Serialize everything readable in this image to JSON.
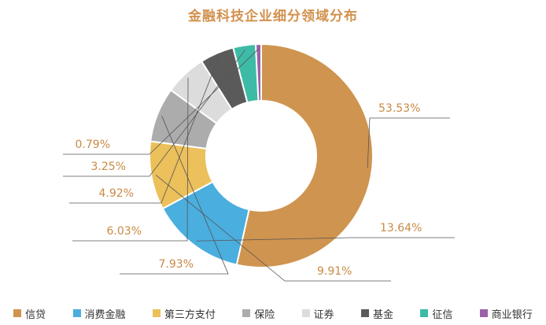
{
  "chart_data": {
    "type": "pie",
    "title": "金融科技企业细分领域分布",
    "categories": [
      "信贷",
      "消费金融",
      "第三方支付",
      "保险",
      "证券",
      "基金",
      "征信",
      "商业银行"
    ],
    "values": [
      53.53,
      13.64,
      9.91,
      7.93,
      6.03,
      4.92,
      3.25,
      0.79
    ],
    "labels": [
      "53.53%",
      "13.64%",
      "9.91%",
      "7.93%",
      "6.03%",
      "4.92%",
      "3.25%",
      "0.79%"
    ],
    "colors": [
      "#cf944f",
      "#4aaede",
      "#ecc05a",
      "#acacac",
      "#dcdcdc",
      "#5a5a5a",
      "#3dbba6",
      "#9a62a8"
    ],
    "label_color": "#c98a44",
    "legend_position": "bottom"
  }
}
